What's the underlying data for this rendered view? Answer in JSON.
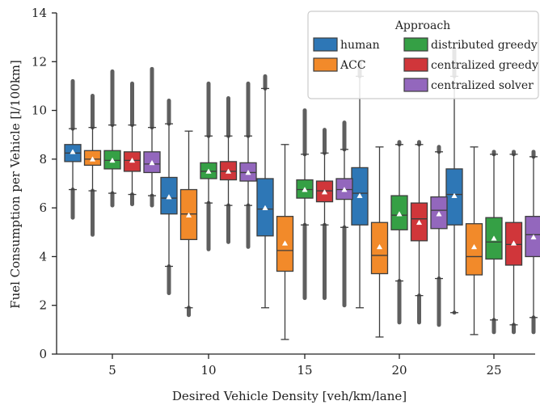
{
  "chart_data": {
    "type": "box",
    "xlabel": "Desired Vehicle Density [veh/km/lane]",
    "ylabel": "Fuel Consumption per Vehicle [l/100km]",
    "ylim": [
      0,
      14
    ],
    "yticks": [
      0,
      2,
      4,
      6,
      8,
      10,
      12,
      14
    ],
    "categories": [
      "5",
      "10",
      "15",
      "20",
      "25"
    ],
    "legend": {
      "title": "Approach",
      "placement": "top-right"
    },
    "series": [
      {
        "name": "human",
        "color": "#2e77b6",
        "boxes": [
          {
            "q1": 7.9,
            "median": 8.25,
            "q3": 8.6,
            "whisker_low": 6.75,
            "whisker_high": 9.25,
            "mean": 8.3,
            "outliers_low": 5.6,
            "outliers_high": 11.2
          },
          {
            "q1": 5.75,
            "median": 6.4,
            "q3": 7.25,
            "whisker_low": 3.6,
            "whisker_high": 9.45,
            "mean": 6.45,
            "outliers_low": 2.5,
            "outliers_high": 10.4
          },
          {
            "q1": 4.85,
            "median": 5.95,
            "q3": 7.2,
            "whisker_low": 1.9,
            "whisker_high": 10.9,
            "mean": 6.0,
            "outliers_low": null,
            "outliers_high": 11.4
          },
          {
            "q1": 5.3,
            "median": 6.6,
            "q3": 7.65,
            "whisker_low": 1.9,
            "whisker_high": 11.4,
            "mean": 6.5,
            "outliers_low": null,
            "outliers_high": 12.0
          },
          {
            "q1": 5.3,
            "median": 6.55,
            "q3": 7.6,
            "whisker_low": 1.7,
            "whisker_high": 11.4,
            "mean": 6.5,
            "outliers_low": 1.7,
            "outliers_high": 12.5
          }
        ]
      },
      {
        "name": "ACC",
        "color": "#f28a2a",
        "boxes": [
          {
            "q1": 7.75,
            "median": 8.0,
            "q3": 8.35,
            "whisker_low": 6.7,
            "whisker_high": 9.3,
            "mean": 8.0,
            "outliers_low": 4.9,
            "outliers_high": 10.6
          },
          {
            "q1": 4.7,
            "median": 5.75,
            "q3": 6.75,
            "whisker_low": 1.9,
            "whisker_high": 9.15,
            "mean": 5.7,
            "outliers_low": 1.6,
            "outliers_high": null
          },
          {
            "q1": 3.4,
            "median": 4.25,
            "q3": 5.65,
            "whisker_low": 0.6,
            "whisker_high": 8.6,
            "mean": 4.55,
            "outliers_low": null,
            "outliers_high": null
          },
          {
            "q1": 3.3,
            "median": 4.05,
            "q3": 5.4,
            "whisker_low": 0.7,
            "whisker_high": 8.5,
            "mean": 4.4,
            "outliers_low": null,
            "outliers_high": null
          },
          {
            "q1": 3.25,
            "median": 4.0,
            "q3": 5.35,
            "whisker_low": 0.8,
            "whisker_high": 8.5,
            "mean": 4.4,
            "outliers_low": null,
            "outliers_high": null
          }
        ]
      },
      {
        "name": "distributed greedy",
        "color": "#35a045",
        "boxes": [
          {
            "q1": 7.6,
            "median": 7.95,
            "q3": 8.35,
            "whisker_low": 6.6,
            "whisker_high": 9.4,
            "mean": 7.95,
            "outliers_low": 6.1,
            "outliers_high": 11.6
          },
          {
            "q1": 7.2,
            "median": 7.5,
            "q3": 7.85,
            "whisker_low": 6.2,
            "whisker_high": 8.95,
            "mean": 7.5,
            "outliers_low": 4.3,
            "outliers_high": 11.1
          },
          {
            "q1": 6.4,
            "median": 6.75,
            "q3": 7.15,
            "whisker_low": 5.3,
            "whisker_high": 8.2,
            "mean": 6.75,
            "outliers_low": 2.3,
            "outliers_high": 10.0
          },
          {
            "q1": 5.1,
            "median": 5.7,
            "q3": 6.5,
            "whisker_low": 3.0,
            "whisker_high": 8.6,
            "mean": 5.75,
            "outliers_low": 1.3,
            "outliers_high": 8.7
          },
          {
            "q1": 3.9,
            "median": 4.6,
            "q3": 5.6,
            "whisker_low": 1.4,
            "whisker_high": 8.2,
            "mean": 4.75,
            "outliers_low": 0.9,
            "outliers_high": 8.3
          }
        ]
      },
      {
        "name": "centralized greedy",
        "color": "#d0363a",
        "boxes": [
          {
            "q1": 7.5,
            "median": 7.95,
            "q3": 8.3,
            "whisker_low": 6.55,
            "whisker_high": 9.4,
            "mean": 7.95,
            "outliers_low": 6.15,
            "outliers_high": 11.1
          },
          {
            "q1": 7.15,
            "median": 7.5,
            "q3": 7.9,
            "whisker_low": 6.1,
            "whisker_high": 8.95,
            "mean": 7.5,
            "outliers_low": 4.6,
            "outliers_high": 10.5
          },
          {
            "q1": 6.25,
            "median": 6.7,
            "q3": 7.1,
            "whisker_low": 5.3,
            "whisker_high": 8.25,
            "mean": 6.65,
            "outliers_low": 2.3,
            "outliers_high": 9.2
          },
          {
            "q1": 4.65,
            "median": 5.55,
            "q3": 6.2,
            "whisker_low": 2.4,
            "whisker_high": 8.6,
            "mean": 5.4,
            "outliers_low": 1.3,
            "outliers_high": 8.7
          },
          {
            "q1": 3.65,
            "median": 4.5,
            "q3": 5.4,
            "whisker_low": 1.2,
            "whisker_high": 8.2,
            "mean": 4.55,
            "outliers_low": 0.9,
            "outliers_high": 8.3
          }
        ]
      },
      {
        "name": "centralized solver",
        "color": "#9367bd",
        "boxes": [
          {
            "q1": 7.45,
            "median": 7.8,
            "q3": 8.3,
            "whisker_low": 6.5,
            "whisker_high": 9.3,
            "mean": 7.85,
            "outliers_low": 6.1,
            "outliers_high": 11.7
          },
          {
            "q1": 7.1,
            "median": 7.45,
            "q3": 7.85,
            "whisker_low": 6.1,
            "whisker_high": 8.95,
            "mean": 7.45,
            "outliers_low": 4.4,
            "outliers_high": 11.1
          },
          {
            "q1": 6.35,
            "median": 6.75,
            "q3": 7.2,
            "whisker_low": 5.2,
            "whisker_high": 8.4,
            "mean": 6.75,
            "outliers_low": 2.0,
            "outliers_high": 9.5
          },
          {
            "q1": 5.15,
            "median": 5.9,
            "q3": 6.45,
            "whisker_low": 3.1,
            "whisker_high": 8.3,
            "mean": 5.75,
            "outliers_low": 1.2,
            "outliers_high": 8.5
          },
          {
            "q1": 4.0,
            "median": 4.9,
            "q3": 5.65,
            "whisker_low": 1.5,
            "whisker_high": 8.1,
            "mean": 4.8,
            "outliers_low": 0.9,
            "outliers_high": 8.3
          }
        ]
      }
    ]
  }
}
